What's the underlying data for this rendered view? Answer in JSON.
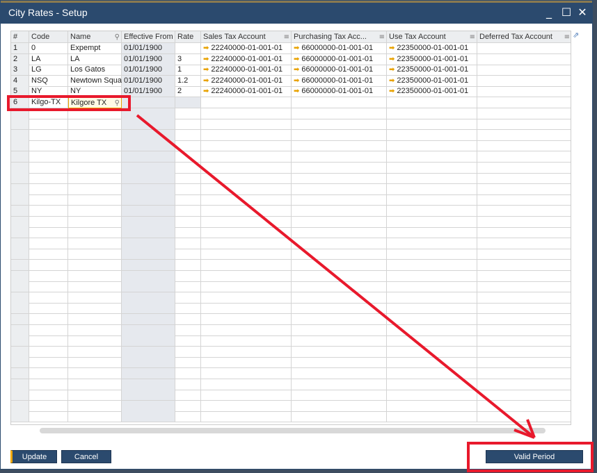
{
  "window": {
    "title": "City Rates - Setup",
    "minimize": "_",
    "maximize": "☐",
    "close": "✕"
  },
  "grid": {
    "columns": [
      "#",
      "Code",
      "Name",
      "Effective From",
      "Rate",
      "Sales Tax Account",
      "Purchasing Tax Acc...",
      "Use Tax Account",
      "Deferred Tax Account"
    ],
    "rows": [
      [
        "1",
        "0",
        "Expempt",
        "01/01/1900",
        "",
        "22240000-01-001-01",
        "66000000-01-001-01",
        "22350000-01-001-01",
        ""
      ],
      [
        "2",
        "LA",
        "LA",
        "01/01/1900",
        "3",
        "22240000-01-001-01",
        "66000000-01-001-01",
        "22350000-01-001-01",
        ""
      ],
      [
        "3",
        "LG",
        "Los Gatos",
        "01/01/1900",
        "1",
        "22240000-01-001-01",
        "66000000-01-001-01",
        "22350000-01-001-01",
        ""
      ],
      [
        "4",
        "NSQ",
        "Newtown Squa",
        "01/01/1900",
        "1.2",
        "22240000-01-001-01",
        "66000000-01-001-01",
        "22350000-01-001-01",
        ""
      ],
      [
        "5",
        "NY",
        "NY",
        "01/01/1900",
        "2",
        "22240000-01-001-01",
        "66000000-01-001-01",
        "22350000-01-001-01",
        ""
      ],
      [
        "6",
        "Kilgo-TX",
        "Kilgore TX",
        "",
        "",
        "",
        "",
        "",
        ""
      ]
    ]
  },
  "buttons": {
    "update": "Update",
    "cancel": "Cancel",
    "valid_period": "Valid Period"
  },
  "colors": {
    "titlebar": "#2b4a6e",
    "annotation": "#e8192c",
    "link_arrow": "#e8a200"
  }
}
